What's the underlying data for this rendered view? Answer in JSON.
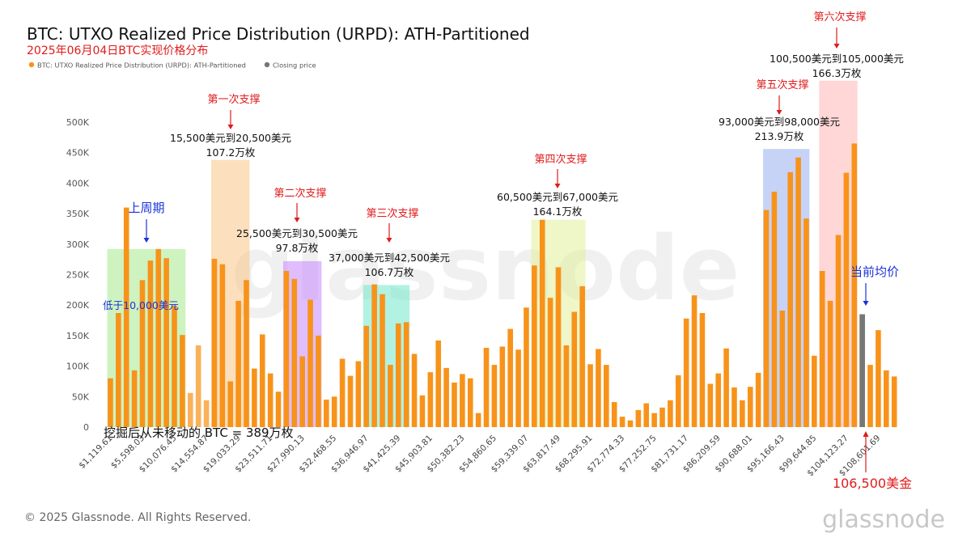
{
  "header": {
    "title": "BTC: UTXO Realized Price Distribution (URPD): ATH-Partitioned",
    "subtitle": "2025年06月04日BTC实现价格分布"
  },
  "legend": {
    "items": [
      {
        "label": "BTC: UTXO Realized Price Distribution (URPD): ATH-Partitioned",
        "color": "#f7931a"
      },
      {
        "label": "Closing price",
        "color": "#777777"
      }
    ]
  },
  "footer": {
    "copyright": "© 2025 Glassnode. All Rights Reserved.",
    "logo": "glassnode",
    "watermark": "glassnode"
  },
  "chart_data": {
    "type": "bar",
    "title": "BTC: UTXO Realized Price Distribution (URPD): ATH-Partitioned",
    "subtitle": "2025年06月04日BTC实现价格分布",
    "ylim": [
      0,
      500000
    ],
    "yticks": [
      0,
      50000,
      100000,
      150000,
      200000,
      250000,
      300000,
      350000,
      400000,
      450000,
      500000
    ],
    "ytick_labels": [
      "0",
      "50K",
      "100K",
      "150K",
      "200K",
      "250K",
      "300K",
      "350K",
      "400K",
      "450K",
      "500K"
    ],
    "xtick_labels": [
      "$1,119.61",
      "$5,598.03",
      "$10,076.45",
      "$14,554.87",
      "$19,033.29",
      "$23,511.71",
      "$27,990.13",
      "$32,468.55",
      "$36,946.97",
      "$41,425.39",
      "$45,903.81",
      "$50,382.23",
      "$54,860.65",
      "$59,339.07",
      "$63,817.49",
      "$68,295.91",
      "$72,774.33",
      "$77,252.75",
      "$81,731.17",
      "$86,209.59",
      "$90,688.01",
      "$95,166.43",
      "$99,644.85",
      "$104,123.27",
      "$108,601.69"
    ],
    "series": [
      {
        "name": "BTC: UTXO Realized Price Distribution (URPD): ATH-Partitioned",
        "color": "#f7931a",
        "values": [
          80000,
          187000,
          360000,
          93000,
          241000,
          273000,
          292000,
          277000,
          199000,
          151000,
          56000,
          134000,
          44000,
          276000,
          267000,
          75000,
          207000,
          241000,
          96000,
          152000,
          88000,
          58000,
          256000,
          243000,
          116000,
          209000,
          150000,
          45000,
          50000,
          112000,
          84000,
          108000,
          166000,
          234000,
          218000,
          102000,
          170000,
          172000,
          120000,
          52000,
          90000,
          142000,
          97000,
          73000,
          87000,
          80000,
          23000,
          130000,
          102000,
          132000,
          161000,
          127000,
          196000,
          265000,
          340000,
          212000,
          262000,
          134000,
          189000,
          231000,
          103000,
          128000,
          102000,
          41000,
          17000,
          11000,
          28000,
          39000,
          23000,
          32000,
          44000,
          85000,
          178000,
          216000,
          187000,
          71000,
          88000,
          129000,
          65000,
          44000,
          66000,
          89000,
          356000,
          386000,
          191000,
          418000,
          442000,
          342000,
          117000,
          256000,
          207000,
          315000,
          417000,
          465000,
          185000,
          102000,
          159000,
          93000,
          83000
        ]
      },
      {
        "name": "Closing price",
        "color": "#777777",
        "bar_index": 94,
        "value": 185000
      }
    ],
    "lighter_bar_indices": [
      10,
      11,
      12
    ],
    "support_zones": [
      {
        "start": 0,
        "end": 9,
        "color": "#7ee05a",
        "alpha": 0.38,
        "ymax": 292000,
        "label": "低于10,000美元",
        "label_color": "#1a33d6",
        "top_label": "上周期",
        "top_color": "#1a33d6"
      },
      {
        "start": 13,
        "end": 17,
        "color": "#f9c07a",
        "alpha": 0.5,
        "ymax": 438000,
        "title": "第一次支撑",
        "range": "15,500美元到20,500美元",
        "amount": "107.2万枚"
      },
      {
        "start": 22,
        "end": 26,
        "color": "#c07cff",
        "alpha": 0.5,
        "ymax": 272000,
        "title": "第二次支撑",
        "range": "25,500美元到30,500美元",
        "amount": "97.8万枚"
      },
      {
        "start": 32,
        "end": 37,
        "color": "#66e6c8",
        "alpha": 0.5,
        "ymax": 233000,
        "title": "第三次支撑",
        "range": "37,000美元到42,500美元",
        "amount": "106.7万枚"
      },
      {
        "start": 53,
        "end": 59,
        "color": "#e2ef9a",
        "alpha": 0.55,
        "ymax": 340000,
        "title": "第四次支撑",
        "range": "60,500美元到67,000美元",
        "amount": "164.1万枚"
      },
      {
        "start": 82,
        "end": 87,
        "color": "#98aef0",
        "alpha": 0.55,
        "ymax": 456000,
        "title": "第五次支撑",
        "range": "93,000美元到98,000美元",
        "amount": "213.9万枚"
      },
      {
        "start": 89,
        "end": 93,
        "color": "#ffb0b0",
        "alpha": 0.5,
        "ymax": 568000,
        "title": "第六次支撑",
        "range": "100,500美元到105,000美元",
        "amount": "166.3万枚"
      }
    ],
    "annotations": {
      "unmoved": "挖掘后从未移动的 BTC = 389万枚",
      "current_label": "当前均价",
      "current_price": "106,500美金"
    },
    "grid": false
  }
}
